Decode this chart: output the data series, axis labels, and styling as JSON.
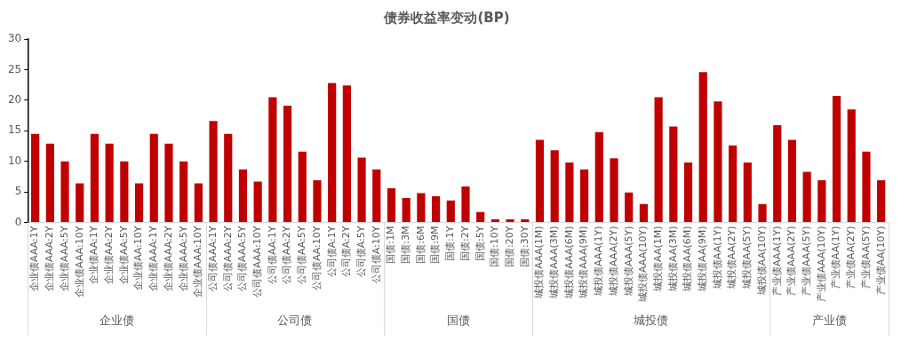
{
  "chart_data": {
    "type": "bar",
    "title": "债券收益率变动(BP)",
    "categories": [
      "企业债AAA:1Y",
      "企业债AAA:2Y",
      "企业债AAA:5Y",
      "企业债AAA:10Y",
      "企业债AA:1Y",
      "企业债AA:2Y",
      "企业债AA:5Y",
      "企业债AA:10Y",
      "企业债AAA:1Y",
      "企业债AAA:2Y",
      "企业债AAA:5Y",
      "企业债AAA:10Y",
      "公司债AAA:1Y",
      "公司债AAA:2Y",
      "公司债AAA:5Y",
      "公司债AAA:10Y",
      "公司债AA:1Y",
      "公司债AA:2Y",
      "公司债AA:5Y",
      "公司债AA:10Y",
      "公司债A:1Y",
      "公司债A:2Y",
      "公司债A:5Y",
      "公司债A:10Y",
      "国债:1M",
      "国债:3M",
      "国债:6M",
      "国债:9M",
      "国债:1Y",
      "国债:2Y",
      "国债:5Y",
      "国债:10Y",
      "国债:20Y",
      "国债:30Y",
      "城投债AAA(1M)",
      "城投债AAA(3M)",
      "城投债AAA(6M)",
      "城投债AAA(9M)",
      "城投债AAA(1Y)",
      "城投债AAA(2Y)",
      "城投债AAA(5Y)",
      "城投债AAA(10Y)",
      "城投债AA(1M)",
      "城投债AA(3M)",
      "城投债AA(6M)",
      "城投债AA(9M)",
      "城投债AA(1Y)",
      "城投债AA(2Y)",
      "城投债AA(5Y)",
      "城投债AA(10Y)",
      "产业债AAA(1Y)",
      "产业债AAA(2Y)",
      "产业债AAA(5Y)",
      "产业债AAA(10Y)",
      "产业债AA(1Y)",
      "产业债AA(2Y)",
      "产业债AA(5Y)",
      "产业债AA(10Y)"
    ],
    "values": [
      14.5,
      12.9,
      10,
      6.4,
      14.5,
      12.9,
      10,
      6.4,
      14.5,
      12.9,
      10,
      6.4,
      16.6,
      14.5,
      8.7,
      6.7,
      20.5,
      19.1,
      11.6,
      6.9,
      22.8,
      22.4,
      10.6,
      8.7,
      5.6,
      4.0,
      4.8,
      4.3,
      3.6,
      5.9,
      1.7,
      0.5,
      0.5,
      0.5,
      13.5,
      11.8,
      9.8,
      8.7,
      14.8,
      10.5,
      4.9,
      3.0,
      20.5,
      15.7,
      9.8,
      24.6,
      19.8,
      12.6,
      9.8,
      3.0,
      15.9,
      13.5,
      8.3,
      6.9,
      20.7,
      18.5,
      11.6,
      6.9
    ],
    "color": "#c00000",
    "ylim": [
      0,
      30
    ],
    "yticks": [
      0,
      5,
      10,
      15,
      20,
      25,
      30
    ],
    "annotations": [
      "企业债",
      "公司债",
      "国债",
      "城投债",
      "产业债"
    ],
    "grid": false,
    "legend": false
  }
}
